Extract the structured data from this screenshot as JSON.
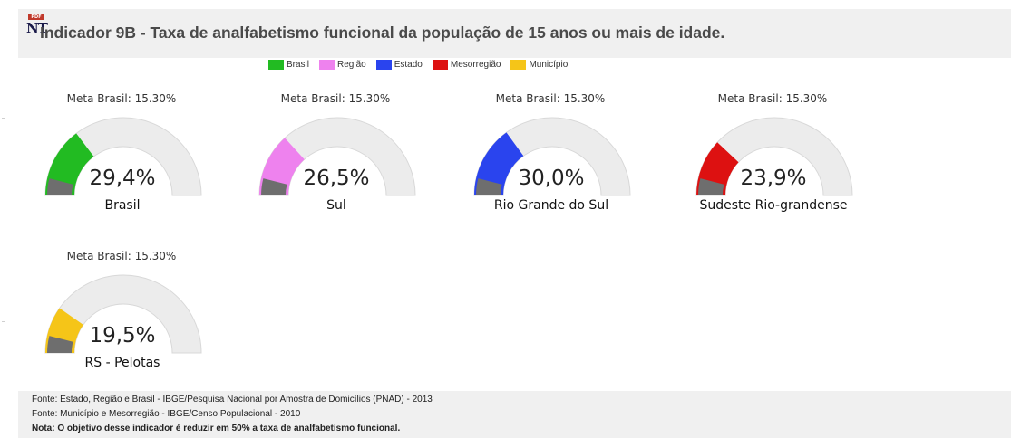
{
  "header": {
    "icon_badge": "PDF",
    "icon_text": "NT",
    "title": "Indicador 9B - Taxa de analfabetismo funcional da população de 15 anos ou mais de idade."
  },
  "legend": [
    {
      "label": "Brasil",
      "color": "#22bb22"
    },
    {
      "label": "Região",
      "color": "#ee82ee"
    },
    {
      "label": "Estado",
      "color": "#2a44ee"
    },
    {
      "label": "Mesorregião",
      "color": "#dd1111"
    },
    {
      "label": "Município",
      "color": "#f5c518"
    }
  ],
  "gauges": [
    {
      "meta": "Meta Brasil: 15.30%",
      "value_text": "29,4%",
      "value": 29.4,
      "name": "Brasil",
      "color": "#22bb22"
    },
    {
      "meta": "Meta Brasil: 15.30%",
      "value_text": "26,5%",
      "value": 26.5,
      "name": "Sul",
      "color": "#ee82ee"
    },
    {
      "meta": "Meta Brasil: 15.30%",
      "value_text": "30,0%",
      "value": 30.0,
      "name": "Rio Grande do Sul",
      "color": "#2a44ee"
    },
    {
      "meta": "Meta Brasil: 15.30%",
      "value_text": "23,9%",
      "value": 23.9,
      "name": "Sudeste Rio-grandense",
      "color": "#dd1111"
    },
    {
      "meta": "Meta Brasil: 15.30%",
      "value_text": "19,5%",
      "value": 19.5,
      "name": "RS - Pelotas",
      "color": "#f5c518"
    }
  ],
  "gauge_style": {
    "track_color": "#ececec",
    "track_border": "#d8d8d8",
    "target_color": "#6e6e6e",
    "max": 100,
    "target": 15.3
  },
  "footer": {
    "line1": "Fonte: Estado, Região e Brasil - IBGE/Pesquisa Nacional por Amostra de Domicílios (PNAD) - 2013",
    "line2": "Fonte: Município e Mesorregião - IBGE/Censo Populacional - 2010",
    "note": "Nota: O objetivo desse indicador é reduzir em 50% a taxa de analfabetismo funcional."
  }
}
